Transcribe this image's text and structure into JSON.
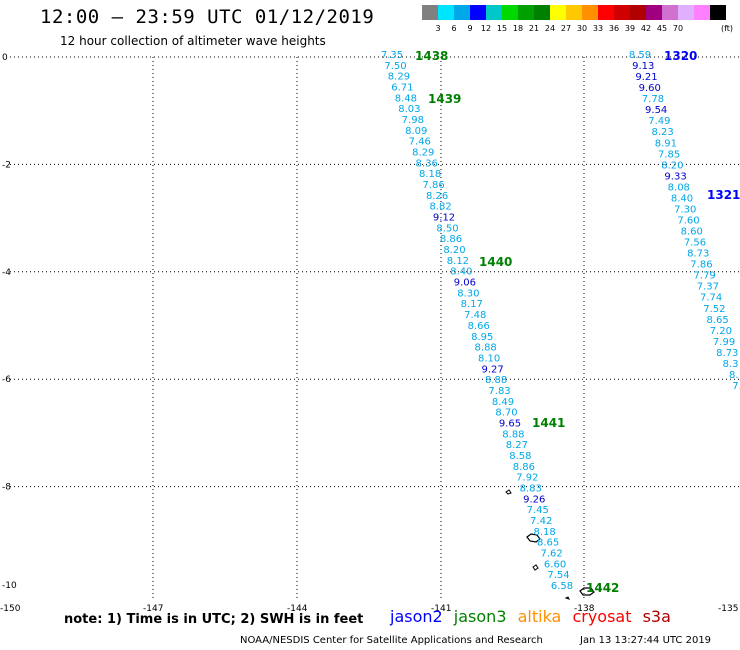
{
  "title": "12:00 — 23:59 UTC 01/12/2019",
  "subtitle": "12 hour collection of altimeter wave heights",
  "legend": {
    "unit": "(ft)",
    "colors": [
      "#808080",
      "#00e5ff",
      "#00a8e8",
      "#0000ff",
      "#00c8c8",
      "#00d800",
      "#00a000",
      "#008000",
      "#ffff00",
      "#ffc800",
      "#ff9000",
      "#ff0000",
      "#d00000",
      "#b00000",
      "#a00080",
      "#d070d0",
      "#e0b0ff",
      "#ff80ff",
      "#000000"
    ],
    "labels": [
      "3",
      "6",
      "9",
      "12",
      "15",
      "18",
      "21",
      "24",
      "27",
      "30",
      "33",
      "36",
      "39",
      "42",
      "45",
      "70"
    ]
  },
  "axes": {
    "y_ticks": [
      "0",
      "-2",
      "-4",
      "-6",
      "-8",
      "-10"
    ],
    "x_ticks": [
      "-150",
      "-147",
      "-144",
      "-141",
      "-138",
      "-135"
    ]
  },
  "tracks": [
    {
      "pass_labels": [
        "1438",
        "1439",
        "1440",
        "1441",
        "1442"
      ],
      "values": [
        "7.35",
        "7.50",
        "8.29",
        "6.71",
        "8.48",
        "8.03",
        "7.98",
        "8.09",
        "7.46",
        "8.29",
        "8.36",
        "8.18",
        "7.86",
        "8.26",
        "8.82",
        "9.12",
        "8.50",
        "8.86",
        "8.20",
        "8.12",
        "8.40",
        "9.06",
        "8.30",
        "8.17",
        "7.48",
        "8.66",
        "8.95",
        "8.88",
        "8.10",
        "9.27",
        "8.88",
        "7.83",
        "8.49",
        "8.70",
        "9.65",
        "8.88",
        "8.27",
        "8.58",
        "8.86",
        "7.92",
        "8.83",
        "9.26",
        "7.45",
        "7.42",
        "8.18",
        "8.65",
        "7.62",
        "6.60",
        "7.54",
        "6.58"
      ]
    },
    {
      "pass_labels": [
        "1320",
        "1321"
      ],
      "values": [
        "8.59",
        "9.13",
        "9.21",
        "9.60",
        "7.78",
        "9.54",
        "7.49",
        "8.23",
        "8.91",
        "7.85",
        "8.20",
        "9.33",
        "8.08",
        "8.40",
        "7.30",
        "7.60",
        "8.60",
        "7.56",
        "8.73",
        "7.86",
        "7.79",
        "7.37",
        "7.74",
        "7.52",
        "8.65",
        "7.20",
        "7.99",
        "8.73",
        "8.3",
        "8.",
        "7."
      ]
    }
  ],
  "footer": {
    "note": "note: 1) Time is in UTC; 2) SWH is in feet",
    "satellites": [
      "jason2",
      "jason3",
      "altika",
      "cryosat",
      "s3a"
    ],
    "credit": "NOAA/NESDIS Center for Satellite Applications and Research",
    "timestamp": "Jan 13 13:27:44 UTC 2019"
  }
}
